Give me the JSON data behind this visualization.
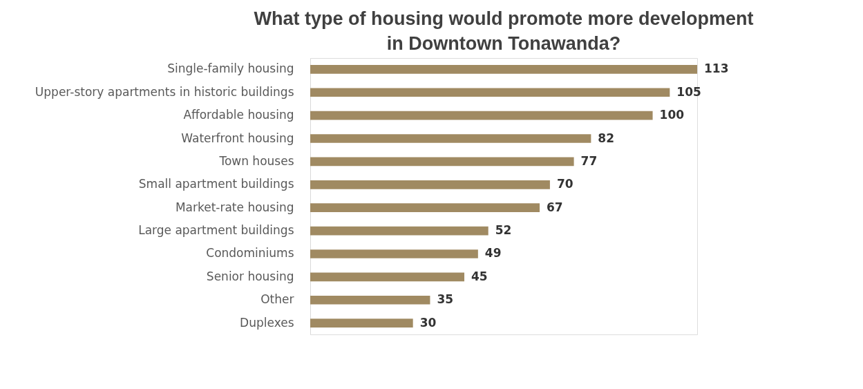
{
  "chart_data": {
    "type": "bar",
    "orientation": "horizontal",
    "title": "What type of housing would promote more development in Downtown Tonawanda?",
    "categories": [
      "Single-family housing",
      "Upper-story apartments in historic buildings",
      "Affordable housing",
      "Waterfront housing",
      "Town houses",
      "Small apartment buildings",
      "Market-rate housing",
      "Large apartment buildings",
      "Condominiums",
      "Senior housing",
      "Other",
      "Duplexes"
    ],
    "values": [
      113,
      105,
      100,
      82,
      77,
      70,
      67,
      52,
      49,
      45,
      35,
      30
    ],
    "color": "#a08a62",
    "data_labels": true
  }
}
